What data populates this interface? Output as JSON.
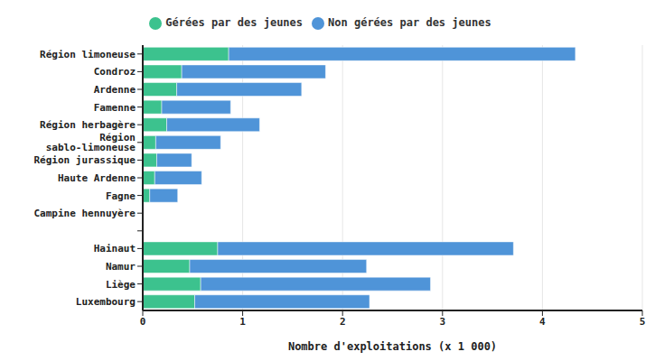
{
  "chart_data": {
    "type": "bar",
    "orientation": "horizontal",
    "stacked": true,
    "grid": true,
    "legend": "top",
    "x_label": "Nombre d'exploitations (x 1 000)",
    "categories": [
      "Région limoneuse",
      "Condroz",
      "Ardenne",
      "Famenne",
      "Région herbagère",
      "Région sablo-limoneuse",
      "Région jurassique",
      "Haute Ardenne",
      "Fagne",
      "Campine hennuyère",
      null,
      "Hainaut",
      "Namur",
      "Liège",
      "Luxembourg"
    ],
    "series": [
      {
        "name": "Gérées par des jeunes",
        "color": "#3cc28e",
        "values": [
          0.86,
          0.39,
          0.34,
          0.19,
          0.24,
          0.13,
          0.14,
          0.12,
          0.07,
          0.002,
          null,
          0.75,
          0.47,
          0.58,
          0.52
        ]
      },
      {
        "name": "Non gérées par des jeunes",
        "color": "#4f94d8",
        "values": [
          3.47,
          1.44,
          1.25,
          0.69,
          0.93,
          0.65,
          0.35,
          0.47,
          0.28,
          0.005,
          null,
          2.96,
          1.77,
          2.3,
          1.75
        ]
      }
    ],
    "xlim": [
      0,
      5
    ],
    "xticks": [
      0,
      1,
      2,
      3,
      4,
      5
    ]
  }
}
